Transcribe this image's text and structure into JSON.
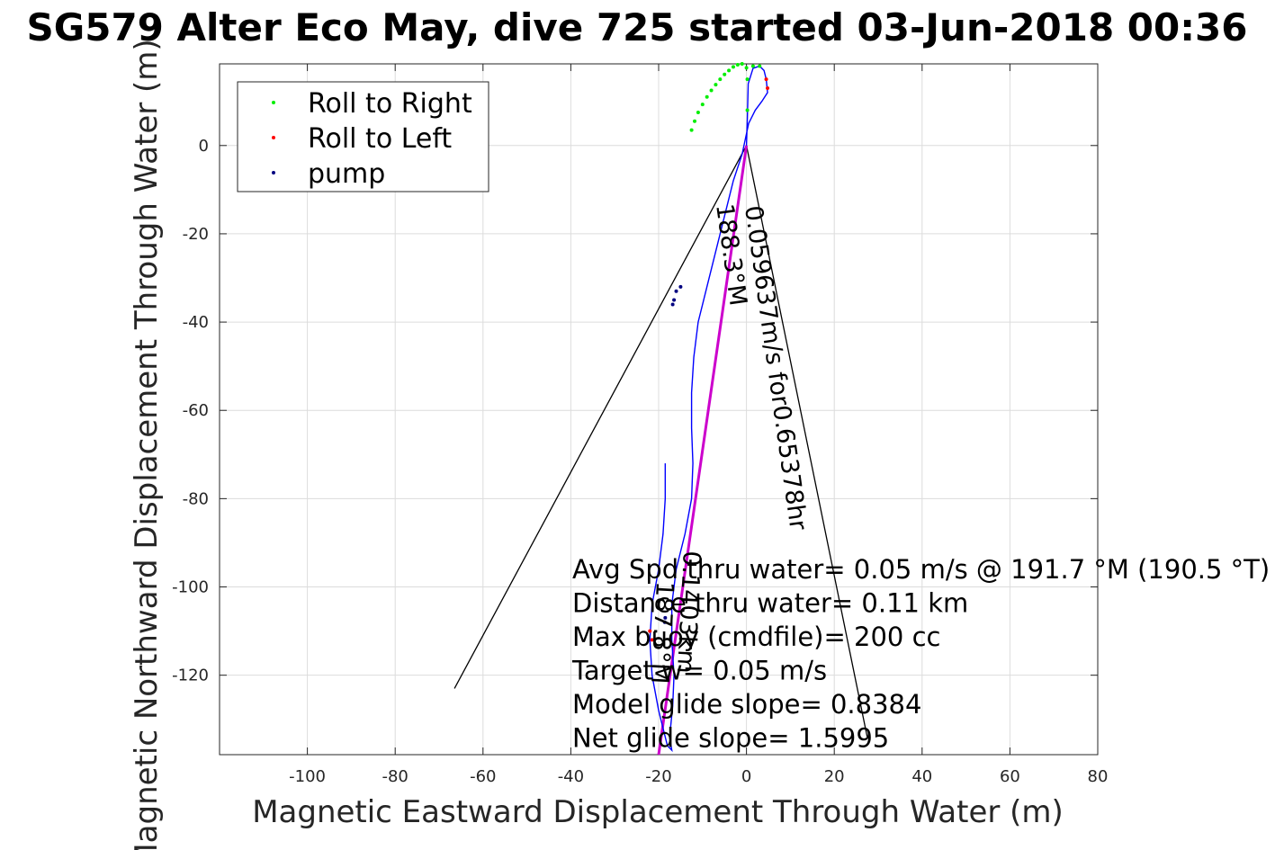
{
  "chart_data": {
    "type": "line",
    "title": "SG579 Alter Eco May, dive 725 started 03-Jun-2018 00:36",
    "xlabel": "Magnetic Eastward Displacement Through Water (m)",
    "ylabel": "Magnetic Northward Displacement Through Water (m)",
    "xlim": [
      -120,
      80
    ],
    "ylim": [
      -138,
      18.5
    ],
    "xticks": [
      -100,
      -80,
      -60,
      -40,
      -20,
      0,
      20,
      40,
      60,
      80
    ],
    "yticks": [
      -120,
      -100,
      -80,
      -60,
      -40,
      -20,
      0
    ],
    "grid": true,
    "legend_position": "top-left",
    "colors": {
      "track": "#0000ff",
      "roll_right": "#00ee00",
      "roll_left": "#ff0000",
      "pump": "#000080",
      "model_track": "#cc00cc",
      "cone": "#000000"
    },
    "legend": [
      "Roll to Right",
      "Roll to Left",
      "pump"
    ],
    "series": [
      {
        "name": "track",
        "x": [
          0,
          0.2,
          0.3,
          0.4,
          1.5,
          3,
          4,
          4.5,
          4.8,
          3.5,
          2,
          0.5,
          -1,
          -3,
          -5,
          -7,
          -9,
          -11,
          -12,
          -12.5,
          -12.5,
          -12.2,
          -12.5,
          -14,
          -16,
          -17,
          -17,
          -16.5,
          -16.8,
          -17.5,
          -17,
          -18,
          -20,
          -21.5,
          -22,
          -21.5,
          -20,
          -19,
          -18.5,
          -18.5
        ],
        "y": [
          0,
          6,
          10,
          14,
          17.5,
          18,
          17,
          15,
          12,
          10,
          8,
          5,
          -2,
          -8,
          -16,
          -24,
          -32,
          -40,
          -48,
          -56,
          -64,
          -72,
          -80,
          -88,
          -96,
          -104,
          -112,
          -120,
          -127,
          -134,
          -137,
          -136,
          -128,
          -120,
          -112,
          -104,
          -96,
          -88,
          -80,
          -72
        ]
      },
      {
        "name": "Roll to Right",
        "x": [
          -12.5,
          -11.8,
          -11,
          -10,
          -9,
          -8,
          -7,
          -6,
          -5,
          -4,
          -3,
          -2,
          -1,
          0,
          0.2,
          0.2,
          1.5,
          3
        ],
        "y": [
          3.5,
          5.5,
          7.5,
          9.3,
          11,
          12.5,
          13.8,
          15,
          16.1,
          17,
          17.8,
          18.3,
          18.5,
          17.6,
          15,
          8,
          18,
          18
        ]
      },
      {
        "name": "Roll to Left",
        "x": [
          4.5,
          4.8,
          -22,
          -21.5
        ],
        "y": [
          15,
          13,
          -110,
          -112
        ]
      },
      {
        "name": "pump",
        "x": [
          -15,
          -16,
          -16.5,
          -16.8,
          -18.5,
          -18.6
        ],
        "y": [
          -32,
          -33,
          -35,
          -36,
          -107,
          -108
        ]
      },
      {
        "name": "model",
        "x": [
          0,
          -20
        ],
        "y": [
          0,
          -138
        ]
      }
    ],
    "cone": {
      "apex": [
        0,
        0
      ],
      "ends": [
        [
          -66.5,
          -123
        ],
        [
          27.5,
          -134
        ]
      ]
    },
    "vector_labels": [
      "0.059637m/s for0.65378hr",
      "188.3°M",
      "0.1403km",
      "187.8°M"
    ],
    "annotations": [
      "Avg Spd thru water=  0.05 m/s @ 191.7 °M (190.5 °T)",
      "Distance thru water=  0.11 km",
      "Max buoy (cmdfile)= 200 cc",
      "Target w= 0.05 m/s",
      "Model glide slope= 0.8384",
      "Net glide slope= 1.5995"
    ]
  }
}
